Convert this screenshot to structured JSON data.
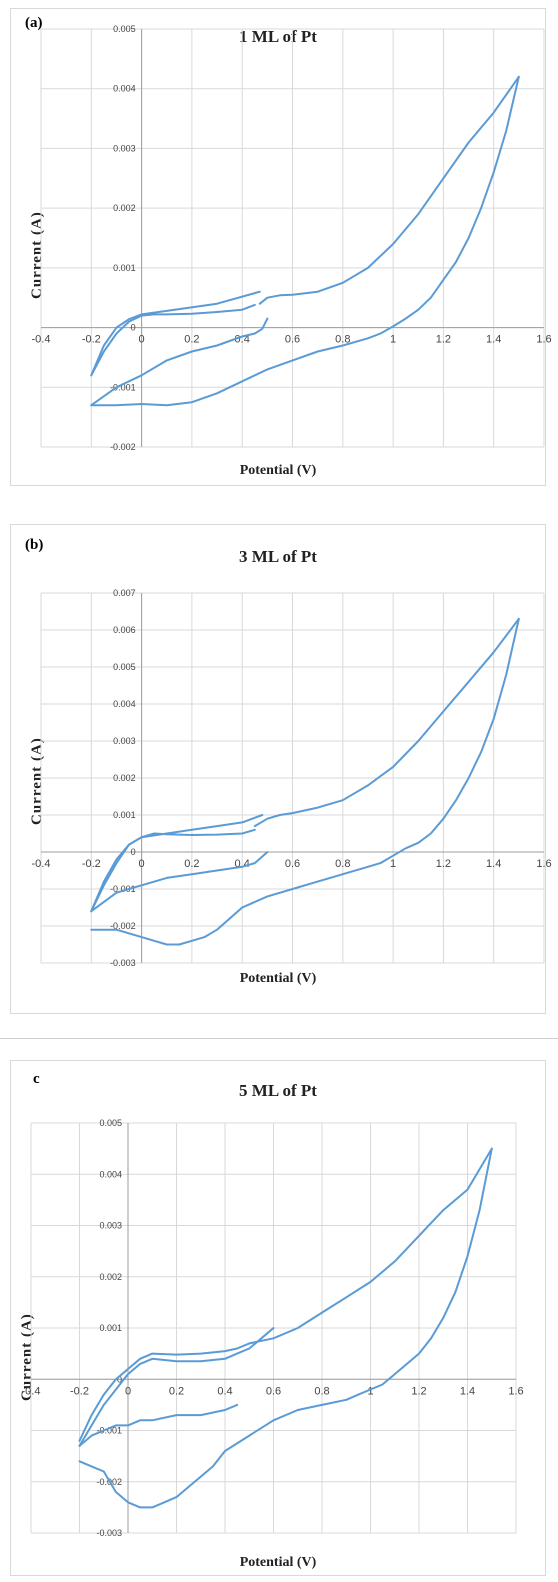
{
  "chart_data": [
    {
      "type": "line",
      "panel_label": "(a)",
      "title": "1 ML of Pt",
      "xlabel": "Potential (V)",
      "ylabel": "Current  (A)",
      "xlim": [
        -0.4,
        1.6
      ],
      "ylim": [
        -0.002,
        0.005
      ],
      "xticks": [
        -0.4,
        -0.2,
        0,
        0.2,
        0.4,
        0.6,
        0.8,
        1,
        1.2,
        1.4,
        1.6
      ],
      "xtick_labels": [
        "-0.4",
        "-0.2",
        "0",
        "0.2",
        "0.4",
        "0.6",
        "0.8",
        "1",
        "1.2",
        "1.4",
        "1.6"
      ],
      "yticks": [
        -0.002,
        -0.001,
        0,
        0.001,
        0.002,
        0.003,
        0.004,
        0.005
      ],
      "ytick_labels": [
        "-0.002",
        "-0.001",
        "0",
        "0.001",
        "0.002",
        "0.003",
        "0.004",
        "0.005"
      ],
      "grid": "vertical",
      "color": "#5b9bd5",
      "series": [
        {
          "x": [
            0.47,
            0.3,
            0.1,
            0.0,
            -0.05,
            -0.1,
            -0.15,
            -0.2
          ],
          "y": [
            0.0006,
            0.0004,
            0.00028,
            0.00022,
            0.00014,
            0.0,
            -0.0003,
            -0.0008
          ]
        },
        {
          "x": [
            -0.2,
            -0.15,
            -0.1,
            -0.05,
            0.0,
            0.05,
            0.1,
            0.2,
            0.3,
            0.4,
            0.45
          ],
          "y": [
            -0.0008,
            -0.0004,
            -0.0001,
            0.0001,
            0.0002,
            0.00022,
            0.00022,
            0.00023,
            0.00026,
            0.0003,
            0.00038
          ]
        },
        {
          "x": [
            -0.2,
            -0.1,
            0.0,
            0.1,
            0.2,
            0.3,
            0.4,
            0.45,
            0.48,
            0.5
          ],
          "y": [
            -0.0013,
            -0.001,
            -0.0008,
            -0.00055,
            -0.0004,
            -0.0003,
            -0.00015,
            -0.0001,
            -2e-05,
            0.00015
          ]
        },
        {
          "x": [
            0.47,
            0.5,
            0.55,
            0.6,
            0.7,
            0.8,
            0.9,
            1.0,
            1.1,
            1.2,
            1.3,
            1.4,
            1.5
          ],
          "y": [
            0.0004,
            0.0005,
            0.00054,
            0.00055,
            0.0006,
            0.00075,
            0.001,
            0.0014,
            0.0019,
            0.0025,
            0.0031,
            0.0036,
            0.0042
          ]
        },
        {
          "x": [
            1.5,
            1.45,
            1.4,
            1.35,
            1.3,
            1.25,
            1.2,
            1.15,
            1.1,
            1.05,
            1.0,
            0.95,
            0.9,
            0.8,
            0.7,
            0.6,
            0.5,
            0.4,
            0.3,
            0.2,
            0.1,
            0.0,
            -0.1,
            -0.2
          ],
          "y": [
            0.0042,
            0.0033,
            0.0026,
            0.002,
            0.0015,
            0.0011,
            0.0008,
            0.0005,
            0.0003,
            0.00015,
            2e-05,
            -0.0001,
            -0.00018,
            -0.0003,
            -0.0004,
            -0.00055,
            -0.0007,
            -0.0009,
            -0.0011,
            -0.00125,
            -0.0013,
            -0.00128,
            -0.0013,
            -0.0013
          ]
        }
      ]
    },
    {
      "type": "line",
      "panel_label": "(b)",
      "title": "3 ML of Pt",
      "xlabel": "Potential (V)",
      "ylabel": "Current  (A)",
      "xlim": [
        -0.4,
        1.6
      ],
      "ylim": [
        -0.003,
        0.007
      ],
      "xticks": [
        -0.4,
        -0.2,
        0,
        0.2,
        0.4,
        0.6,
        0.8,
        1,
        1.2,
        1.4,
        1.6
      ],
      "xtick_labels": [
        "-0.4",
        "-0.2",
        "0",
        "0.2",
        "0.4",
        "0.6",
        "0.8",
        "1",
        "1.2",
        "1.4",
        "1.6"
      ],
      "yticks": [
        -0.003,
        -0.002,
        -0.001,
        0,
        0.001,
        0.002,
        0.003,
        0.004,
        0.005,
        0.006,
        0.007
      ],
      "ytick_labels": [
        "-0.003",
        "-0.002",
        "-0.001",
        "0",
        "0.001",
        "0.002",
        "0.003",
        "0.004",
        "0.005",
        "0.006",
        "0.007"
      ],
      "grid": "vertical",
      "color": "#5b9bd5",
      "series": [
        {
          "x": [
            0.48,
            0.4,
            0.3,
            0.2,
            0.1,
            0.0,
            -0.05,
            -0.1,
            -0.15,
            -0.2
          ],
          "y": [
            0.001,
            0.0008,
            0.0007,
            0.0006,
            0.0005,
            0.0004,
            0.0002,
            -0.0002,
            -0.0008,
            -0.0016
          ]
        },
        {
          "x": [
            -0.2,
            -0.15,
            -0.1,
            -0.05,
            0.0,
            0.05,
            0.1,
            0.2,
            0.3,
            0.4,
            0.45
          ],
          "y": [
            -0.0016,
            -0.0009,
            -0.0003,
            0.0002,
            0.0004,
            0.0005,
            0.00048,
            0.00046,
            0.00047,
            0.0005,
            0.0006
          ]
        },
        {
          "x": [
            -0.2,
            -0.1,
            0.0,
            0.1,
            0.2,
            0.3,
            0.4,
            0.45,
            0.5
          ],
          "y": [
            -0.0016,
            -0.0011,
            -0.0009,
            -0.0007,
            -0.0006,
            -0.0005,
            -0.0004,
            -0.0003,
            0.0
          ]
        },
        {
          "x": [
            0.45,
            0.5,
            0.55,
            0.6,
            0.7,
            0.8,
            0.9,
            1.0,
            1.1,
            1.2,
            1.3,
            1.4,
            1.5
          ],
          "y": [
            0.0007,
            0.0009,
            0.001,
            0.00105,
            0.0012,
            0.0014,
            0.0018,
            0.0023,
            0.003,
            0.0038,
            0.0046,
            0.0054,
            0.0063
          ]
        },
        {
          "x": [
            1.5,
            1.45,
            1.4,
            1.35,
            1.3,
            1.25,
            1.2,
            1.15,
            1.1,
            1.05,
            1.0,
            0.95,
            0.9,
            0.8,
            0.7,
            0.6,
            0.5,
            0.4,
            0.35,
            0.3,
            0.25,
            0.2,
            0.15,
            0.1,
            0.05,
            0.0,
            -0.1,
            -0.2
          ],
          "y": [
            0.0063,
            0.0048,
            0.0036,
            0.0027,
            0.002,
            0.0014,
            0.0009,
            0.0005,
            0.00025,
            0.0001,
            -0.0001,
            -0.0003,
            -0.0004,
            -0.0006,
            -0.0008,
            -0.001,
            -0.0012,
            -0.0015,
            -0.0018,
            -0.0021,
            -0.0023,
            -0.0024,
            -0.0025,
            -0.0025,
            -0.0024,
            -0.0023,
            -0.0021,
            -0.0021
          ]
        }
      ]
    },
    {
      "type": "line",
      "panel_label": "c",
      "title": "5 ML of Pt",
      "xlabel": "Potential (V)",
      "ylabel": "Current  (A)",
      "xlim": [
        -0.4,
        1.6
      ],
      "ylim": [
        -0.003,
        0.005
      ],
      "xticks": [
        -0.4,
        -0.2,
        0,
        0.2,
        0.4,
        0.6,
        0.8,
        1,
        1.2,
        1.4,
        1.6
      ],
      "xtick_labels": [
        "-0.4",
        "-0.2",
        "0",
        "0.2",
        "0.4",
        "0.6",
        "0.8",
        "1",
        "1.2",
        "1.4",
        "1.6"
      ],
      "yticks": [
        -0.003,
        -0.002,
        -0.001,
        0,
        0.001,
        0.002,
        0.003,
        0.004,
        0.005
      ],
      "ytick_labels": [
        "-0.003",
        "-0.002",
        "-0.001",
        "0",
        "0.001",
        "0.002",
        "0.003",
        "0.004",
        "0.005"
      ],
      "grid": "vertical",
      "color": "#5b9bd5",
      "series": [
        {
          "x": [
            0.45,
            0.4,
            0.3,
            0.2,
            0.1,
            0.05,
            0.0,
            -0.05,
            -0.1,
            -0.15,
            -0.2
          ],
          "y": [
            -0.0005,
            -0.0006,
            -0.0007,
            -0.0007,
            -0.0008,
            -0.0008,
            -0.0009,
            -0.0009,
            -0.001,
            -0.0011,
            -0.0013
          ]
        },
        {
          "x": [
            -0.2,
            -0.15,
            -0.1,
            -0.05,
            0.0,
            0.05,
            0.1,
            0.2,
            0.3,
            0.4,
            0.45,
            0.5,
            0.55,
            0.6
          ],
          "y": [
            -0.0013,
            -0.0009,
            -0.0005,
            -0.0002,
            0.0001,
            0.0003,
            0.0004,
            0.00035,
            0.00035,
            0.0004,
            0.0005,
            0.0006,
            0.0008,
            0.001
          ]
        },
        {
          "x": [
            -0.2,
            -0.15,
            -0.1,
            -0.05,
            0.0,
            0.05,
            0.1,
            0.2,
            0.3,
            0.4,
            0.45,
            0.5,
            0.6,
            0.7,
            0.8,
            0.9,
            1.0,
            1.1,
            1.2,
            1.3,
            1.4,
            1.5
          ],
          "y": [
            -0.0012,
            -0.0007,
            -0.0003,
            0.0,
            0.0002,
            0.0004,
            0.0005,
            0.00048,
            0.0005,
            0.00055,
            0.0006,
            0.0007,
            0.0008,
            0.001,
            0.0013,
            0.0016,
            0.0019,
            0.0023,
            0.0028,
            0.0033,
            0.0037,
            0.0045
          ]
        },
        {
          "x": [
            1.5,
            1.45,
            1.4,
            1.35,
            1.3,
            1.25,
            1.2,
            1.15,
            1.1,
            1.05,
            1.0,
            0.95,
            0.9,
            0.8,
            0.7,
            0.6,
            0.5,
            0.4,
            0.35,
            0.3,
            0.25,
            0.2,
            0.15,
            0.1,
            0.05,
            0.0,
            -0.05,
            -0.1,
            -0.15,
            -0.2
          ],
          "y": [
            0.0045,
            0.0033,
            0.0024,
            0.0017,
            0.0012,
            0.0008,
            0.0005,
            0.0003,
            0.0001,
            -0.0001,
            -0.0002,
            -0.0003,
            -0.0004,
            -0.0005,
            -0.0006,
            -0.0008,
            -0.0011,
            -0.0014,
            -0.0017,
            -0.0019,
            -0.0021,
            -0.0023,
            -0.0024,
            -0.0025,
            -0.0025,
            -0.0024,
            -0.0022,
            -0.0018,
            -0.0017,
            -0.0016
          ]
        }
      ]
    }
  ]
}
